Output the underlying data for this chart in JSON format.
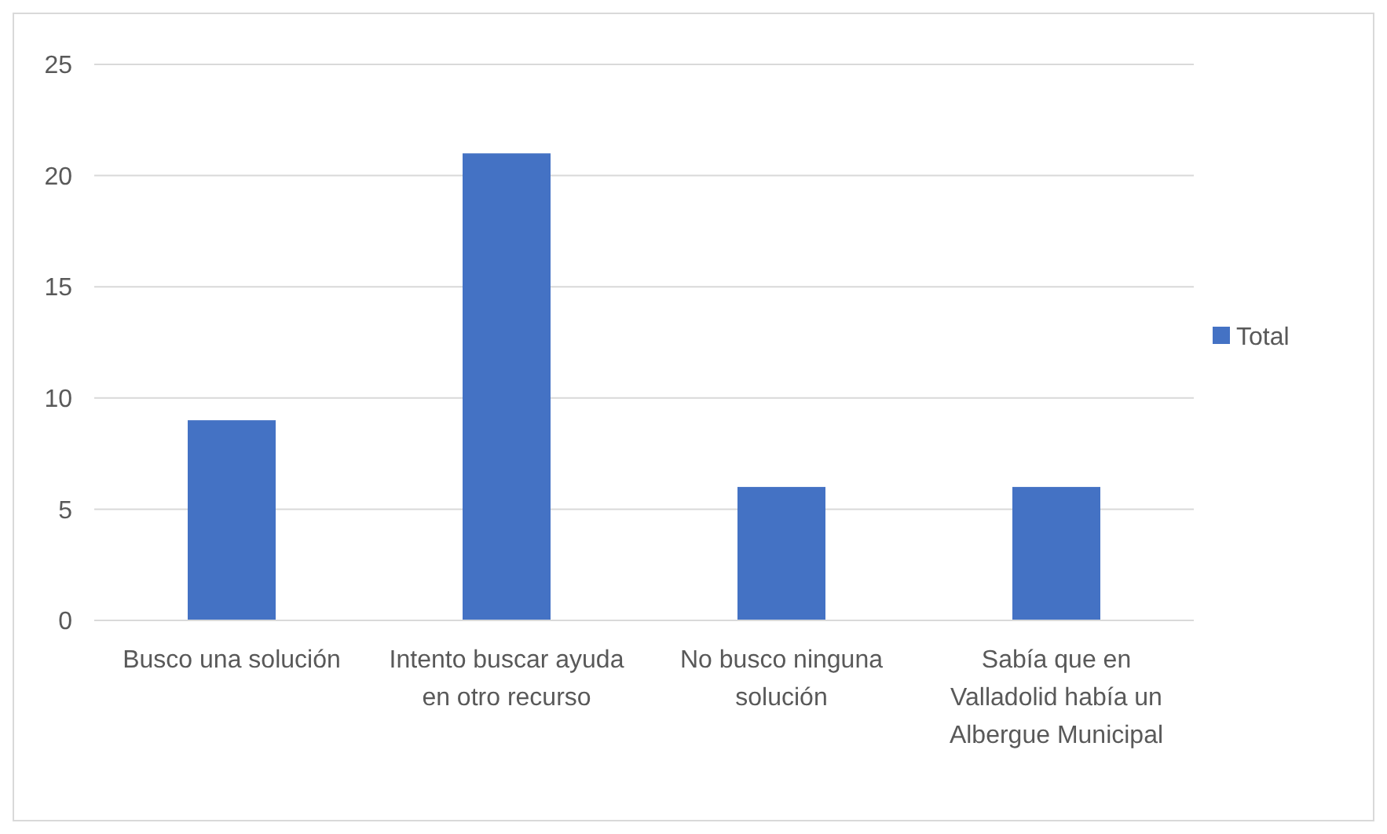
{
  "chart_data": {
    "type": "bar",
    "categories": [
      "Busco una solución",
      "Intento buscar ayuda en otro recurso",
      "No busco ninguna solución",
      "Sabía que en Valladolid había un Albergue Municipal"
    ],
    "series": [
      {
        "name": "Total",
        "color": "#4472c4",
        "values": [
          9,
          21,
          6,
          6
        ]
      }
    ],
    "ylim": [
      0,
      25
    ],
    "yticks": [
      0,
      5,
      10,
      15,
      20,
      25
    ],
    "grid": "y",
    "legend": "right"
  }
}
